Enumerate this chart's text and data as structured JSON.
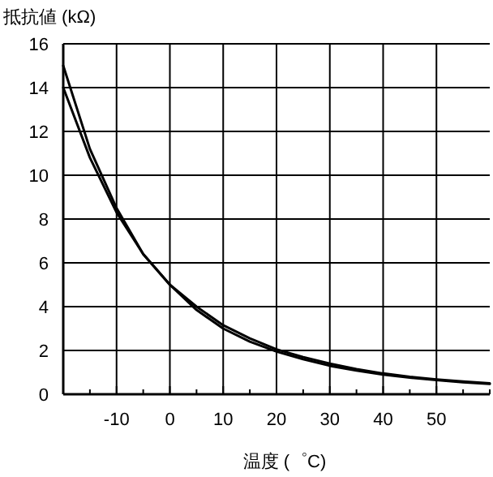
{
  "chart_data": {
    "type": "line",
    "xlabel": "温度 (゜C)",
    "ylabel": "抵抗値 (kΩ)",
    "xlim": [
      -20,
      60
    ],
    "ylim": [
      0,
      16
    ],
    "xticks": [
      {
        "value": -20,
        "label": null
      },
      {
        "value": -15,
        "label": null
      },
      {
        "value": -10,
        "label": "-10"
      },
      {
        "value": -5,
        "label": null
      },
      0,
      {
        "value": 5,
        "label": null
      },
      10,
      {
        "value": 15,
        "label": null
      },
      20,
      {
        "value": 25,
        "label": null
      },
      30,
      {
        "value": 35,
        "label": null
      },
      40,
      {
        "value": 45,
        "label": null
      },
      50,
      {
        "value": 55,
        "label": null
      },
      {
        "value": 60,
        "label": null
      }
    ],
    "yticks": [
      0,
      2,
      4,
      6,
      8,
      10,
      12,
      14,
      16
    ],
    "grid": true,
    "marker": "none",
    "line_style": "solid",
    "x": [
      -20,
      -15,
      -10,
      -5,
      0,
      5,
      10,
      15,
      20,
      25,
      30,
      35,
      40,
      45,
      50,
      55,
      60
    ],
    "series": [
      {
        "color": "#000000",
        "values": [
          15.0,
          11.2,
          8.5,
          6.4,
          5.0,
          3.85,
          3.0,
          2.4,
          1.95,
          1.6,
          1.3,
          1.08,
          0.9,
          0.76,
          0.65,
          0.55,
          0.47
        ]
      },
      {
        "color": "#000000",
        "values": [
          14.0,
          10.8,
          8.3,
          6.4,
          5.0,
          4.0,
          3.15,
          2.55,
          2.05,
          1.7,
          1.4,
          1.15,
          0.95,
          0.8,
          0.68,
          0.58,
          0.5
        ]
      }
    ]
  }
}
